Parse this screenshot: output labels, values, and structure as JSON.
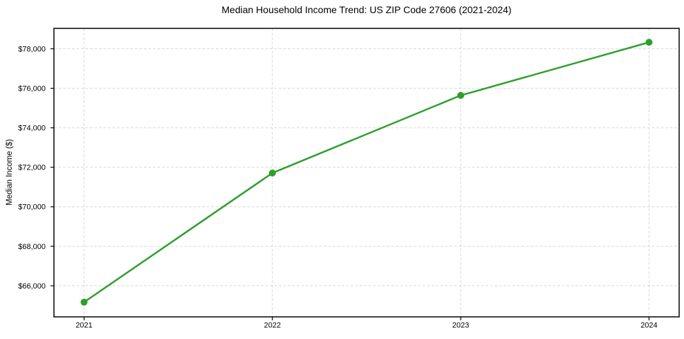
{
  "chart_data": {
    "type": "line",
    "title": "Median Household Income Trend: US ZIP Code 27606 (2021-2024)",
    "xlabel": "",
    "ylabel": "Median Income ($)",
    "x": [
      2021,
      2022,
      2023,
      2024
    ],
    "x_tick_labels": [
      "2021",
      "2022",
      "2023",
      "2024"
    ],
    "series": [
      {
        "name": "Median Household Income",
        "values": [
          65170,
          71710,
          75640,
          78330
        ]
      }
    ],
    "yticks": [
      66000,
      68000,
      70000,
      72000,
      74000,
      76000,
      78000
    ],
    "y_tick_labels": [
      "$66,000",
      "$68,000",
      "$70,000",
      "$72,000",
      "$74,000",
      "$76,000",
      "$78,000"
    ],
    "xlim": [
      2020.84,
      2024.16
    ],
    "ylim": [
      64425,
      79035
    ],
    "grid": true,
    "grid_style": "dashed",
    "legend": false,
    "colors": {
      "line": "#2ca02c",
      "marker": "#2ca02c",
      "grid": "#d9d9d9",
      "spine": "#000000",
      "background": "#ffffff"
    },
    "line_width": 2.5,
    "marker": "circle",
    "marker_radius": 5
  }
}
